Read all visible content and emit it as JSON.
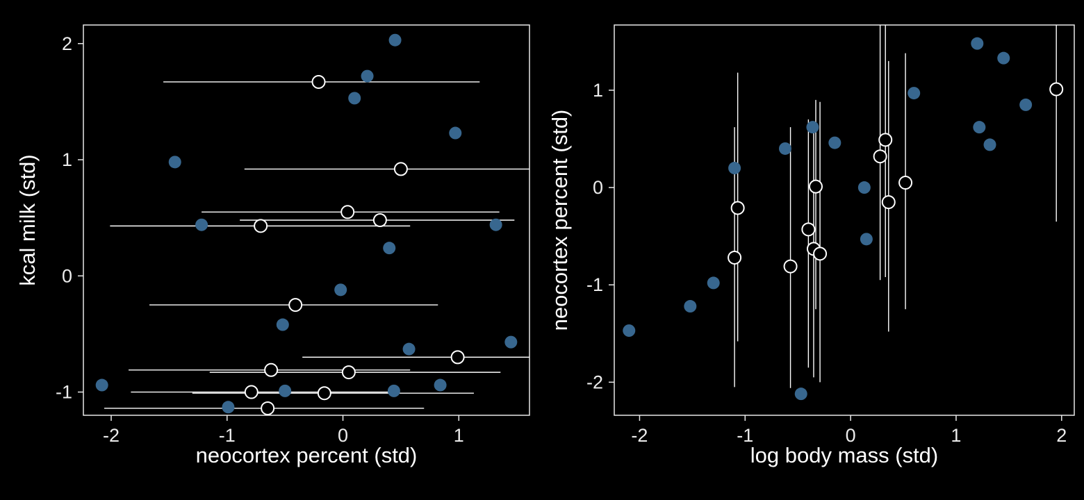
{
  "figure": {
    "background": "#000000",
    "description": "Two scatter plots with imputed values shown as open circles with credible-interval bars"
  },
  "style": {
    "observed_color": "#38678F",
    "imputed_fill": "#000000",
    "imputed_stroke": "#FFFFFF",
    "interval_color": "#FFFFFF",
    "frame_color": "#E8E8E8",
    "tick_label_color": "#ECECEC",
    "axis_title_color": "#FFFFFF",
    "point_radius": 9
  },
  "chart_data": [
    {
      "type": "scatter",
      "title": "",
      "xlabel": "neocortex percent (std)",
      "ylabel": "kcal milk (std)",
      "xlim": [
        -2.24,
        1.61
      ],
      "ylim": [
        -1.2,
        2.16
      ],
      "xticks": [
        -2,
        -1,
        0,
        1
      ],
      "yticks": [
        -1,
        0,
        1,
        2
      ],
      "grid": false,
      "legend": false,
      "series": [
        {
          "name": "observed",
          "marker": "filled-circle",
          "color": "#38678F",
          "points": [
            [
              0.45,
              2.03
            ],
            [
              0.21,
              1.72
            ],
            [
              0.1,
              1.53
            ],
            [
              0.97,
              1.23
            ],
            [
              -1.45,
              0.98
            ],
            [
              -1.22,
              0.44
            ],
            [
              1.32,
              0.44
            ],
            [
              0.4,
              0.24
            ],
            [
              -0.02,
              -0.12
            ],
            [
              -0.52,
              -0.42
            ],
            [
              1.45,
              -0.57
            ],
            [
              0.57,
              -0.63
            ],
            [
              0.84,
              -0.94
            ],
            [
              -2.08,
              -0.94
            ],
            [
              0.44,
              -0.99
            ],
            [
              -0.5,
              -0.99
            ],
            [
              -0.99,
              -1.13
            ]
          ]
        },
        {
          "name": "imputed",
          "marker": "open-circle",
          "color": "#FFFFFF",
          "ci_axis": "x",
          "points": [
            [
              -0.21,
              1.67
            ],
            [
              0.5,
              0.92
            ],
            [
              0.04,
              0.55
            ],
            [
              0.32,
              0.48
            ],
            [
              -0.71,
              0.43
            ],
            [
              -0.41,
              -0.25
            ],
            [
              0.99,
              -0.7
            ],
            [
              -0.62,
              -0.81
            ],
            [
              0.05,
              -0.83
            ],
            [
              -0.79,
              -1.0
            ],
            [
              -0.16,
              -1.01
            ],
            [
              -0.65,
              -1.14
            ]
          ],
          "ci": [
            [
              -1.55,
              1.18
            ],
            [
              -0.85,
              1.75
            ],
            [
              -1.22,
              1.35
            ],
            [
              -0.89,
              1.48
            ],
            [
              -2.01,
              0.58
            ],
            [
              -1.67,
              0.82
            ],
            [
              -0.35,
              1.7
            ],
            [
              -1.85,
              0.58
            ],
            [
              -1.15,
              1.36
            ],
            [
              -1.83,
              0.42
            ],
            [
              -1.3,
              1.13
            ],
            [
              -2.06,
              0.7
            ]
          ]
        }
      ]
    },
    {
      "type": "scatter",
      "title": "",
      "xlabel": "log body mass (std)",
      "ylabel": "neocortex percent (std)",
      "xlim": [
        -2.24,
        2.12
      ],
      "ylim": [
        -2.34,
        1.67
      ],
      "xticks": [
        -2,
        -1,
        0,
        1,
        2
      ],
      "yticks": [
        -2,
        -1,
        0,
        1
      ],
      "grid": false,
      "legend": false,
      "series": [
        {
          "name": "observed",
          "marker": "filled-circle",
          "color": "#38678F",
          "points": [
            [
              -2.1,
              -1.47
            ],
            [
              -1.52,
              -1.22
            ],
            [
              -1.3,
              -0.98
            ],
            [
              -1.1,
              0.2
            ],
            [
              -0.62,
              0.4
            ],
            [
              -0.36,
              0.62
            ],
            [
              -0.47,
              -2.12
            ],
            [
              -0.15,
              0.46
            ],
            [
              0.13,
              0.0
            ],
            [
              0.15,
              -0.53
            ],
            [
              0.6,
              0.97
            ],
            [
              1.2,
              1.48
            ],
            [
              1.45,
              1.33
            ],
            [
              1.22,
              0.62
            ],
            [
              1.32,
              0.44
            ],
            [
              1.66,
              0.85
            ]
          ]
        },
        {
          "name": "imputed",
          "marker": "open-circle",
          "color": "#FFFFFF",
          "ci_axis": "y",
          "points": [
            [
              -1.07,
              -0.21
            ],
            [
              -1.1,
              -0.72
            ],
            [
              -0.57,
              -0.81
            ],
            [
              -0.4,
              -0.43
            ],
            [
              -0.35,
              -0.63
            ],
            [
              -0.29,
              -0.68
            ],
            [
              -0.33,
              0.01
            ],
            [
              0.28,
              0.32
            ],
            [
              0.33,
              0.49
            ],
            [
              0.36,
              -0.15
            ],
            [
              0.52,
              0.05
            ],
            [
              1.95,
              1.01
            ]
          ],
          "ci": [
            [
              -1.58,
              1.18
            ],
            [
              -2.05,
              0.62
            ],
            [
              -2.06,
              0.62
            ],
            [
              -1.85,
              0.7
            ],
            [
              -1.95,
              0.67
            ],
            [
              -2.0,
              0.88
            ],
            [
              -1.25,
              0.9
            ],
            [
              -0.95,
              1.75
            ],
            [
              -0.92,
              1.75
            ],
            [
              -1.48,
              1.3
            ],
            [
              -1.25,
              1.38
            ],
            [
              -0.35,
              1.75
            ]
          ]
        }
      ]
    }
  ]
}
